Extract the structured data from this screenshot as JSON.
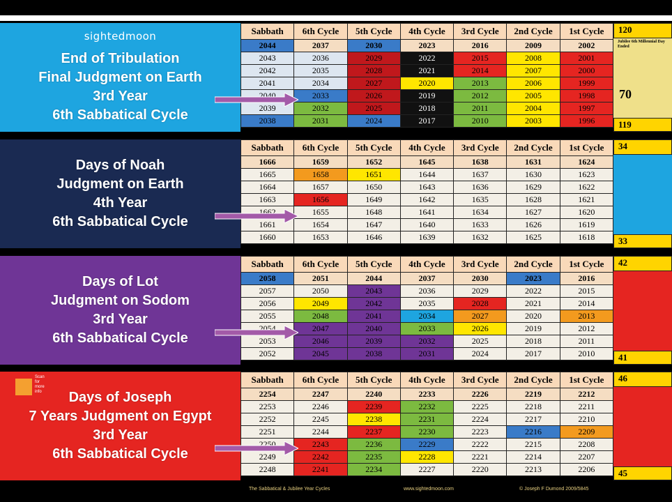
{
  "logo": "sightedmoon",
  "panels": [
    {
      "lines": [
        "End of Tribulation",
        "Final Judgment on Earth",
        "3rd Year",
        "6th Sabbatical Cycle"
      ],
      "bg": "#1ea5e0"
    },
    {
      "lines": [
        "Days of Noah",
        "Judgment on Earth",
        "4th Year",
        "6th Sabbatical Cycle"
      ],
      "bg": "#1a2a52"
    },
    {
      "lines": [
        "Days of Lot",
        "Judgment on Sodom",
        "3rd Year",
        "6th Sabbatical Cycle"
      ],
      "bg": "#6f3596"
    },
    {
      "lines": [
        "Days of Joseph",
        "7 Years Judgment on Egypt",
        "3rd Year",
        "6th Sabbatical Cycle"
      ],
      "bg": "#e52521"
    }
  ],
  "headers": [
    "Sabbath",
    "6th Cycle",
    "5th Cycle",
    "4th Cycle",
    "3rd Cycle",
    "2nd Cycle",
    "1st Cycle"
  ],
  "tables": [
    {
      "rows": [
        [
          [
            "2044",
            "#3a7bc8"
          ],
          [
            "2037",
            ""
          ],
          [
            "2030",
            "#3a7bc8"
          ],
          [
            "2023",
            ""
          ],
          [
            "2016",
            ""
          ],
          [
            "2009",
            ""
          ],
          [
            "2002",
            ""
          ]
        ],
        [
          [
            "2043",
            "#dde6f0"
          ],
          [
            "2036",
            "#dde6f0"
          ],
          [
            "2029",
            "#c0181c"
          ],
          [
            "2022",
            "#111111"
          ],
          [
            "2015",
            "#e52521"
          ],
          [
            "2008",
            "#ffe600"
          ],
          [
            "2001",
            "#e52521"
          ]
        ],
        [
          [
            "2042",
            "#dde6f0"
          ],
          [
            "2035",
            "#dde6f0"
          ],
          [
            "2028",
            "#c0181c"
          ],
          [
            "2021",
            "#111111"
          ],
          [
            "2014",
            "#e52521"
          ],
          [
            "2007",
            "#ffe600"
          ],
          [
            "2000",
            "#e52521"
          ]
        ],
        [
          [
            "2041",
            "#dde6f0"
          ],
          [
            "2034",
            "#dde6f0"
          ],
          [
            "2027",
            "#c0181c"
          ],
          [
            "2020",
            "#ffe600"
          ],
          [
            "2013",
            "#7cba40"
          ],
          [
            "2006",
            "#ffe600"
          ],
          [
            "1999",
            "#e52521"
          ]
        ],
        [
          [
            "2040",
            "#dde6f0"
          ],
          [
            "2033",
            "#3a7bc8"
          ],
          [
            "2026",
            "#c0181c"
          ],
          [
            "2019",
            "#111111"
          ],
          [
            "2012",
            "#7cba40"
          ],
          [
            "2005",
            "#ffe600"
          ],
          [
            "1998",
            "#e52521"
          ]
        ],
        [
          [
            "2039",
            "#dde6f0"
          ],
          [
            "2032",
            "#7cba40"
          ],
          [
            "2025",
            "#c0181c"
          ],
          [
            "2018",
            "#111111"
          ],
          [
            "2011",
            "#7cba40"
          ],
          [
            "2004",
            "#ffe600"
          ],
          [
            "1997",
            "#e52521"
          ]
        ],
        [
          [
            "2038",
            "#3a7bc8"
          ],
          [
            "2031",
            "#7cba40"
          ],
          [
            "2024",
            "#3a7bc8"
          ],
          [
            "2017",
            "#111111"
          ],
          [
            "2010",
            "#7cba40"
          ],
          [
            "2003",
            "#ffe600"
          ],
          [
            "1996",
            "#e52521"
          ]
        ]
      ],
      "side_top": "120",
      "side_mid": "70",
      "side_bottom": "119",
      "side_bg": "#efe08a",
      "side_note": [
        "Jubilee",
        "6th",
        "Millennial",
        "Day",
        "Ended"
      ]
    },
    {
      "rows": [
        [
          [
            "1666",
            ""
          ],
          [
            "1659",
            ""
          ],
          [
            "1652",
            ""
          ],
          [
            "1645",
            ""
          ],
          [
            "1638",
            ""
          ],
          [
            "1631",
            ""
          ],
          [
            "1624",
            ""
          ]
        ],
        [
          [
            "1665",
            ""
          ],
          [
            "1658",
            "#f39a1e"
          ],
          [
            "1651",
            "#ffe600"
          ],
          [
            "1644",
            ""
          ],
          [
            "1637",
            ""
          ],
          [
            "1630",
            ""
          ],
          [
            "1623",
            ""
          ]
        ],
        [
          [
            "1664",
            ""
          ],
          [
            "1657",
            ""
          ],
          [
            "1650",
            ""
          ],
          [
            "1643",
            ""
          ],
          [
            "1636",
            ""
          ],
          [
            "1629",
            ""
          ],
          [
            "1622",
            ""
          ]
        ],
        [
          [
            "1663",
            ""
          ],
          [
            "1656",
            "#e52521"
          ],
          [
            "1649",
            ""
          ],
          [
            "1642",
            ""
          ],
          [
            "1635",
            ""
          ],
          [
            "1628",
            ""
          ],
          [
            "1621",
            ""
          ]
        ],
        [
          [
            "1662",
            ""
          ],
          [
            "1655",
            ""
          ],
          [
            "1648",
            ""
          ],
          [
            "1641",
            ""
          ],
          [
            "1634",
            ""
          ],
          [
            "1627",
            ""
          ],
          [
            "1620",
            ""
          ]
        ],
        [
          [
            "1661",
            ""
          ],
          [
            "1654",
            ""
          ],
          [
            "1647",
            ""
          ],
          [
            "1640",
            ""
          ],
          [
            "1633",
            ""
          ],
          [
            "1626",
            ""
          ],
          [
            "1619",
            ""
          ]
        ],
        [
          [
            "1660",
            ""
          ],
          [
            "1653",
            ""
          ],
          [
            "1646",
            ""
          ],
          [
            "1639",
            ""
          ],
          [
            "1632",
            ""
          ],
          [
            "1625",
            ""
          ],
          [
            "1618",
            ""
          ]
        ]
      ],
      "side_top": "34",
      "side_bottom": "33",
      "side_bg": "#1ea5e0"
    },
    {
      "rows": [
        [
          [
            "2058",
            "#3a7bc8"
          ],
          [
            "2051",
            ""
          ],
          [
            "2044",
            ""
          ],
          [
            "2037",
            ""
          ],
          [
            "2030",
            ""
          ],
          [
            "2023",
            "#3a7bc8"
          ],
          [
            "2016",
            ""
          ]
        ],
        [
          [
            "2057",
            ""
          ],
          [
            "2050",
            ""
          ],
          [
            "2043",
            "#6f3596"
          ],
          [
            "2036",
            ""
          ],
          [
            "2029",
            ""
          ],
          [
            "2022",
            ""
          ],
          [
            "2015",
            ""
          ]
        ],
        [
          [
            "2056",
            ""
          ],
          [
            "2049",
            "#ffe600"
          ],
          [
            "2042",
            "#6f3596"
          ],
          [
            "2035",
            ""
          ],
          [
            "2028",
            "#e52521"
          ],
          [
            "2021",
            ""
          ],
          [
            "2014",
            ""
          ]
        ],
        [
          [
            "2055",
            ""
          ],
          [
            "2048",
            "#7cba40"
          ],
          [
            "2041",
            "#6f3596"
          ],
          [
            "2034",
            "#1ea5e0"
          ],
          [
            "2027",
            "#f39a1e"
          ],
          [
            "2020",
            ""
          ],
          [
            "2013",
            "#f39a1e"
          ]
        ],
        [
          [
            "2054",
            ""
          ],
          [
            "2047",
            "#6f3596"
          ],
          [
            "2040",
            "#6f3596"
          ],
          [
            "2033",
            "#7cba40"
          ],
          [
            "2026",
            "#ffe600"
          ],
          [
            "2019",
            ""
          ],
          [
            "2012",
            ""
          ]
        ],
        [
          [
            "2053",
            ""
          ],
          [
            "2046",
            "#6f3596"
          ],
          [
            "2039",
            "#6f3596"
          ],
          [
            "2032",
            "#6f3596"
          ],
          [
            "2025",
            ""
          ],
          [
            "2018",
            ""
          ],
          [
            "2011",
            ""
          ]
        ],
        [
          [
            "2052",
            ""
          ],
          [
            "2045",
            "#6f3596"
          ],
          [
            "2038",
            "#6f3596"
          ],
          [
            "2031",
            "#6f3596"
          ],
          [
            "2024",
            ""
          ],
          [
            "2017",
            ""
          ],
          [
            "2010",
            ""
          ]
        ]
      ],
      "side_top": "42",
      "side_bottom": "41",
      "side_bg": "#e52521"
    },
    {
      "rows": [
        [
          [
            "2254",
            ""
          ],
          [
            "2247",
            ""
          ],
          [
            "2240",
            ""
          ],
          [
            "2233",
            ""
          ],
          [
            "2226",
            ""
          ],
          [
            "2219",
            ""
          ],
          [
            "2212",
            ""
          ]
        ],
        [
          [
            "2253",
            ""
          ],
          [
            "2246",
            ""
          ],
          [
            "2239",
            "#e52521"
          ],
          [
            "2232",
            "#7cba40"
          ],
          [
            "2225",
            ""
          ],
          [
            "2218",
            ""
          ],
          [
            "2211",
            ""
          ]
        ],
        [
          [
            "2252",
            ""
          ],
          [
            "2245",
            ""
          ],
          [
            "2238",
            "#ffe600"
          ],
          [
            "2231",
            "#7cba40"
          ],
          [
            "2224",
            ""
          ],
          [
            "2217",
            ""
          ],
          [
            "2210",
            ""
          ]
        ],
        [
          [
            "2251",
            ""
          ],
          [
            "2244",
            ""
          ],
          [
            "2237",
            "#e52521"
          ],
          [
            "2230",
            "#7cba40"
          ],
          [
            "2223",
            ""
          ],
          [
            "2216",
            "#3a7bc8"
          ],
          [
            "2209",
            "#f39a1e"
          ]
        ],
        [
          [
            "2250",
            ""
          ],
          [
            "2243",
            "#e52521"
          ],
          [
            "2236",
            "#7cba40"
          ],
          [
            "2229",
            "#3a7bc8"
          ],
          [
            "2222",
            ""
          ],
          [
            "2215",
            ""
          ],
          [
            "2208",
            ""
          ]
        ],
        [
          [
            "2249",
            ""
          ],
          [
            "2242",
            "#e52521"
          ],
          [
            "2235",
            "#7cba40"
          ],
          [
            "2228",
            "#ffe600"
          ],
          [
            "2221",
            ""
          ],
          [
            "2214",
            ""
          ],
          [
            "2207",
            ""
          ]
        ],
        [
          [
            "2248",
            ""
          ],
          [
            "2241",
            "#e52521"
          ],
          [
            "2234",
            "#7cba40"
          ],
          [
            "2227",
            ""
          ],
          [
            "2220",
            ""
          ],
          [
            "2213",
            ""
          ],
          [
            "2206",
            ""
          ]
        ]
      ],
      "side_top": "46",
      "side_bottom": "45",
      "side_bg": "#e52521"
    }
  ],
  "qr_text": [
    "Scan",
    "for",
    "more",
    "info"
  ],
  "footer": {
    "left": "The Sabbatical & Jubilee Year Cycles",
    "mid": "www.sightedmoon.com",
    "right": "© Joseph F Dumond 2009/5845"
  }
}
